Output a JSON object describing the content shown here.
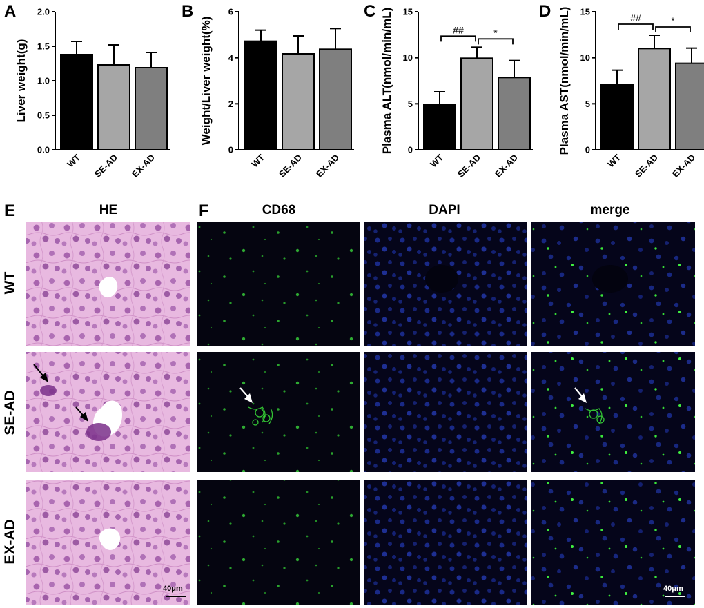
{
  "chart_data": [
    {
      "panel": "A",
      "type": "bar",
      "categories": [
        "WT",
        "SE-AD",
        "EX-AD"
      ],
      "values": [
        1.38,
        1.23,
        1.19
      ],
      "errors": [
        0.19,
        0.29,
        0.22
      ],
      "ylabel": "Liver weight(g)",
      "ylim": [
        0,
        2.0
      ],
      "yticks": [
        "0.0",
        "0.5",
        "1.0",
        "1.5",
        "2.0"
      ],
      "colors": [
        "#000000",
        "#a6a6a6",
        "#7f7f7f"
      ],
      "significance": []
    },
    {
      "panel": "B",
      "type": "bar",
      "categories": [
        "WT",
        "SE-AD",
        "EX-AD"
      ],
      "values": [
        4.72,
        4.17,
        4.37
      ],
      "errors": [
        0.48,
        0.78,
        0.9
      ],
      "ylabel": "Weight/Liver weight(%)",
      "ylim": [
        0,
        6
      ],
      "yticks": [
        "0",
        "2",
        "4",
        "6"
      ],
      "colors": [
        "#000000",
        "#a6a6a6",
        "#7f7f7f"
      ],
      "significance": []
    },
    {
      "panel": "C",
      "type": "bar",
      "categories": [
        "WT",
        "SE-AD",
        "EX-AD"
      ],
      "values": [
        4.95,
        9.95,
        7.85
      ],
      "errors": [
        1.35,
        1.2,
        1.85
      ],
      "ylabel": "Plasma ALT(nmol/min/mL)",
      "ylim": [
        0,
        15
      ],
      "yticks": [
        "0",
        "5",
        "10",
        "15"
      ],
      "colors": [
        "#000000",
        "#a6a6a6",
        "#7f7f7f"
      ],
      "significance": [
        {
          "from": 0,
          "to": 1,
          "label": "##"
        },
        {
          "from": 1,
          "to": 2,
          "label": "*"
        }
      ]
    },
    {
      "panel": "D",
      "type": "bar",
      "categories": [
        "WT",
        "SE-AD",
        "EX-AD"
      ],
      "values": [
        7.1,
        11.0,
        9.4
      ],
      "errors": [
        1.55,
        1.45,
        1.65
      ],
      "ylabel": "Plasma AST(nmol/min/mL)",
      "ylim": [
        0,
        15
      ],
      "yticks": [
        "0",
        "5",
        "10",
        "15"
      ],
      "colors": [
        "#000000",
        "#a6a6a6",
        "#7f7f7f"
      ],
      "significance": [
        {
          "from": 0,
          "to": 1,
          "label": "##"
        },
        {
          "from": 1,
          "to": 2,
          "label": "*"
        }
      ]
    }
  ],
  "micrographs": {
    "panel_e": "E",
    "panel_f": "F",
    "columns": [
      "HE",
      "CD68",
      "DAPI",
      "merge"
    ],
    "rows": [
      "WT",
      "SE-AD",
      "EX-AD"
    ],
    "scale_bar_he": "40μm",
    "scale_bar_fluor": "40μm",
    "colors": {
      "he_background": "#e6b3de",
      "he_nuclei": "#8a3f94",
      "fluor_background": "#050512",
      "cd68": "#39e639",
      "dapi": "#1a2f9e",
      "arrow_he": "#000000",
      "arrow_fluor": "#ffffff"
    }
  }
}
